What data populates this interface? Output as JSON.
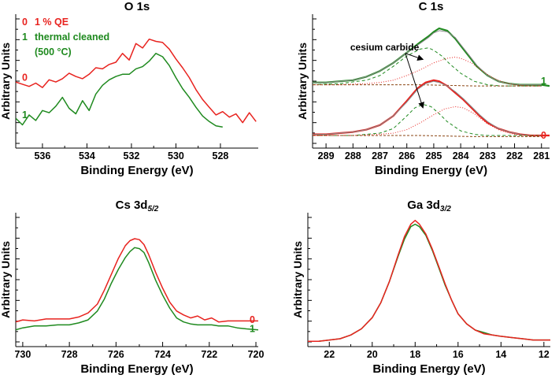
{
  "colors": {
    "red": "#e8231f",
    "green": "#1f8a1f",
    "axis": "#000000",
    "grid": "#666666"
  },
  "chart_data": [
    {
      "id": "o1s",
      "type": "line",
      "title": "O 1s",
      "title_sub": "",
      "xlabel": "Binding Energy (eV)",
      "ylabel": "Arbitrary Units",
      "xlim": [
        537.2,
        526.3
      ],
      "ylim": [
        0,
        1
      ],
      "xticks": [
        536,
        534,
        532,
        530,
        528
      ],
      "legend": [
        {
          "key": "0",
          "text": "1 % QE",
          "color": "red"
        },
        {
          "key": "1",
          "text": "thermal cleaned",
          "color": "green"
        },
        {
          "key": "",
          "text": "(500 °C)",
          "color": "green"
        }
      ],
      "series_labels": [
        {
          "text": "0",
          "color": "red",
          "side": "left",
          "y": 0.52
        },
        {
          "text": "1",
          "color": "green",
          "side": "left",
          "y": 0.18
        }
      ],
      "annotations": [],
      "series": [
        {
          "name": "1 % QE",
          "color": "red",
          "x": [
            537.2,
            536.9,
            536.6,
            536.3,
            536.0,
            535.7,
            535.4,
            535.1,
            534.8,
            534.5,
            534.2,
            533.9,
            533.6,
            533.3,
            533.0,
            532.7,
            532.4,
            532.1,
            531.8,
            531.5,
            531.2,
            530.9,
            530.6,
            530.3,
            530.0,
            529.7,
            529.4,
            529.1,
            528.8,
            528.5,
            528.2,
            527.9,
            527.6,
            527.3,
            527.0,
            526.7,
            526.4
          ],
          "y": [
            0.48,
            0.46,
            0.44,
            0.47,
            0.43,
            0.5,
            0.48,
            0.51,
            0.56,
            0.53,
            0.51,
            0.55,
            0.61,
            0.6,
            0.64,
            0.66,
            0.74,
            0.68,
            0.83,
            0.79,
            0.87,
            0.85,
            0.84,
            0.78,
            0.69,
            0.61,
            0.52,
            0.41,
            0.32,
            0.25,
            0.18,
            0.21,
            0.16,
            0.19,
            0.11,
            0.2,
            0.12
          ]
        },
        {
          "name": "thermal cleaned",
          "color": "green",
          "x": [
            537.2,
            536.9,
            536.6,
            536.3,
            536.0,
            535.7,
            535.4,
            535.1,
            534.8,
            534.5,
            534.2,
            533.9,
            533.6,
            533.3,
            533.0,
            532.7,
            532.4,
            532.1,
            531.8,
            531.5,
            531.2,
            530.9,
            530.6,
            530.3,
            530.0,
            529.7,
            529.4,
            529.1,
            528.8,
            528.5,
            528.2,
            527.9
          ],
          "y": [
            0.15,
            0.09,
            0.18,
            0.13,
            0.22,
            0.2,
            0.26,
            0.34,
            0.24,
            0.19,
            0.31,
            0.22,
            0.37,
            0.45,
            0.5,
            0.53,
            0.55,
            0.55,
            0.6,
            0.62,
            0.67,
            0.74,
            0.71,
            0.63,
            0.52,
            0.42,
            0.34,
            0.25,
            0.17,
            0.12,
            0.08,
            0.07
          ]
        }
      ]
    },
    {
      "id": "c1s",
      "type": "line",
      "title": "C 1s",
      "title_sub": "",
      "xlabel": "Binding Energy (eV)",
      "ylabel": "Arbitrary Units",
      "xlim": [
        289.5,
        280.7
      ],
      "ylim": [
        0,
        1
      ],
      "xticks": [
        289,
        288,
        287,
        286,
        285,
        284,
        283,
        282,
        281
      ],
      "legend": [],
      "series_labels": [
        {
          "text": "1",
          "color": "green",
          "side": "right",
          "y": 0.51
        },
        {
          "text": "0",
          "color": "red",
          "side": "right",
          "y": 0.04
        }
      ],
      "annotations": [
        {
          "text": "cesium carbide",
          "x": 288.1,
          "y": 0.78,
          "arrows": [
            [
              285.4,
              0.7
            ],
            [
              285.4,
              0.28
            ]
          ]
        }
      ],
      "series": [
        {
          "name": "thermal cleaned",
          "color": "green",
          "width": 2.2,
          "x": [
            289.5,
            289.0,
            288.5,
            288.0,
            287.5,
            287.0,
            286.5,
            286.0,
            285.5,
            285.2,
            285.0,
            284.8,
            284.5,
            284.2,
            284.0,
            283.7,
            283.4,
            283.0,
            282.6,
            282.2,
            281.8,
            281.4,
            281.0,
            280.7
          ],
          "y": [
            0.5,
            0.5,
            0.51,
            0.52,
            0.55,
            0.6,
            0.67,
            0.76,
            0.85,
            0.9,
            0.94,
            0.97,
            0.95,
            0.88,
            0.82,
            0.73,
            0.64,
            0.56,
            0.51,
            0.49,
            0.48,
            0.48,
            0.48,
            0.47
          ]
        },
        {
          "name": "fit envelope (1)",
          "color": "grey",
          "width": 1,
          "x": [
            289.5,
            289.0,
            288.5,
            288.0,
            287.5,
            287.0,
            286.5,
            286.0,
            285.5,
            285.2,
            285.0,
            284.8,
            284.5,
            284.2,
            284.0,
            283.7,
            283.4,
            283.0,
            282.6,
            282.2,
            281.8,
            281.4,
            281.0
          ],
          "y": [
            0.5,
            0.5,
            0.51,
            0.52,
            0.55,
            0.6,
            0.67,
            0.76,
            0.84,
            0.89,
            0.93,
            0.95,
            0.94,
            0.89,
            0.83,
            0.74,
            0.65,
            0.56,
            0.51,
            0.49,
            0.48,
            0.48,
            0.48
          ]
        },
        {
          "name": "carbide component (1)",
          "color": "green",
          "dash": "4,3",
          "width": 1,
          "x": [
            289.5,
            288.5,
            287.5,
            287.0,
            286.5,
            286.0,
            285.5,
            285.2,
            285.0,
            284.7,
            284.4,
            284.0,
            283.5,
            283.0,
            282.5,
            282.0,
            281.0
          ],
          "y": [
            0.48,
            0.49,
            0.52,
            0.56,
            0.64,
            0.73,
            0.79,
            0.8,
            0.78,
            0.73,
            0.66,
            0.58,
            0.51,
            0.48,
            0.47,
            0.47,
            0.47
          ]
        },
        {
          "name": "graphitic component (1)",
          "color": "red",
          "dash": "1,2",
          "width": 1,
          "x": [
            289.5,
            288.5,
            287.5,
            287.0,
            286.5,
            286.0,
            285.5,
            285.0,
            284.5,
            284.2,
            284.0,
            283.6,
            283.2,
            282.8,
            282.4,
            282.0,
            281.5,
            281.0
          ],
          "y": [
            0.48,
            0.48,
            0.49,
            0.5,
            0.52,
            0.56,
            0.61,
            0.67,
            0.71,
            0.72,
            0.71,
            0.67,
            0.6,
            0.54,
            0.5,
            0.48,
            0.47,
            0.47
          ]
        },
        {
          "name": "background (1)",
          "color": "brown",
          "dash": "3,2",
          "width": 1,
          "x": [
            289.5,
            287.5,
            285.5,
            283.5,
            281.5,
            281.0
          ],
          "y": [
            0.48,
            0.48,
            0.48,
            0.47,
            0.47,
            0.47
          ]
        },
        {
          "name": "1 % QE",
          "color": "red",
          "width": 2.2,
          "x": [
            289.5,
            289.0,
            288.5,
            288.0,
            287.5,
            287.0,
            286.5,
            286.0,
            285.6,
            285.3,
            285.0,
            284.8,
            284.5,
            284.2,
            283.9,
            283.6,
            283.3,
            283.0,
            282.6,
            282.2,
            281.8,
            281.4,
            281.0,
            280.7
          ],
          "y": [
            0.05,
            0.05,
            0.06,
            0.07,
            0.09,
            0.13,
            0.21,
            0.34,
            0.45,
            0.5,
            0.52,
            0.51,
            0.47,
            0.41,
            0.35,
            0.28,
            0.21,
            0.15,
            0.1,
            0.07,
            0.05,
            0.04,
            0.04,
            0.04
          ]
        },
        {
          "name": "fit envelope (0)",
          "color": "grey",
          "width": 1,
          "x": [
            289.5,
            289.0,
            288.5,
            288.0,
            287.5,
            287.0,
            286.5,
            286.0,
            285.6,
            285.3,
            285.0,
            284.8,
            284.5,
            284.2,
            283.9,
            283.6,
            283.3,
            283.0,
            282.6,
            282.2,
            281.8,
            281.4,
            281.0
          ],
          "y": [
            0.05,
            0.05,
            0.06,
            0.07,
            0.09,
            0.13,
            0.21,
            0.33,
            0.44,
            0.49,
            0.51,
            0.5,
            0.47,
            0.42,
            0.36,
            0.29,
            0.22,
            0.16,
            0.1,
            0.07,
            0.05,
            0.04,
            0.04
          ]
        },
        {
          "name": "carbide component (0)",
          "color": "green",
          "dash": "4,3",
          "width": 1,
          "x": [
            289.5,
            288.0,
            287.0,
            286.5,
            286.0,
            285.7,
            285.4,
            285.1,
            284.8,
            284.5,
            284.0,
            283.5,
            283.0,
            282.0,
            281.0
          ],
          "y": [
            0.04,
            0.04,
            0.06,
            0.1,
            0.21,
            0.28,
            0.31,
            0.29,
            0.23,
            0.16,
            0.08,
            0.05,
            0.04,
            0.04,
            0.04
          ]
        },
        {
          "name": "graphitic component (0)",
          "color": "red",
          "dash": "1,2",
          "width": 1,
          "x": [
            289.5,
            288.0,
            287.0,
            286.5,
            286.0,
            285.5,
            285.0,
            284.6,
            284.2,
            283.9,
            283.5,
            283.0,
            282.5,
            282.0,
            281.5,
            281.0
          ],
          "y": [
            0.04,
            0.04,
            0.05,
            0.06,
            0.09,
            0.15,
            0.22,
            0.27,
            0.29,
            0.28,
            0.23,
            0.14,
            0.08,
            0.05,
            0.04,
            0.04
          ]
        },
        {
          "name": "background (0)",
          "color": "brown",
          "dash": "3,2",
          "width": 1,
          "x": [
            289.5,
            287.5,
            285.5,
            283.5,
            281.5,
            281.0
          ],
          "y": [
            0.04,
            0.04,
            0.04,
            0.03,
            0.03,
            0.03
          ]
        }
      ]
    },
    {
      "id": "cs3d",
      "type": "line",
      "title": "Cs 3d",
      "title_sub": "5/2",
      "xlabel": "Binding Energy (eV)",
      "ylabel": "Arbitrary Units",
      "xlim": [
        730.3,
        719.9
      ],
      "ylim": [
        0,
        1
      ],
      "xticks": [
        730,
        728,
        726,
        724,
        722,
        720
      ],
      "legend": [],
      "series_labels": [
        {
          "text": "0",
          "color": "red",
          "side": "right",
          "y": 0.08
        },
        {
          "text": "1",
          "color": "green",
          "side": "right",
          "y": -0.01
        }
      ],
      "annotations": [],
      "series": [
        {
          "name": "1 % QE",
          "color": "red",
          "x": [
            730.3,
            730.0,
            729.5,
            729.0,
            728.5,
            728.0,
            727.6,
            727.2,
            726.8,
            726.5,
            726.2,
            725.9,
            725.6,
            725.4,
            725.2,
            725.0,
            724.8,
            724.6,
            724.3,
            724.0,
            723.7,
            723.4,
            723.1,
            722.8,
            722.5,
            722.2,
            721.9,
            721.6,
            721.2,
            720.8,
            720.4,
            719.9
          ],
          "y": [
            0.06,
            0.08,
            0.07,
            0.09,
            0.09,
            0.09,
            0.11,
            0.15,
            0.24,
            0.38,
            0.54,
            0.7,
            0.83,
            0.88,
            0.9,
            0.89,
            0.84,
            0.74,
            0.56,
            0.4,
            0.26,
            0.17,
            0.13,
            0.1,
            0.12,
            0.08,
            0.1,
            0.06,
            0.07,
            0.07,
            0.07,
            0.07
          ]
        },
        {
          "name": "thermal cleaned",
          "color": "green",
          "x": [
            730.3,
            730.0,
            729.5,
            729.0,
            728.5,
            728.0,
            727.6,
            727.2,
            726.8,
            726.5,
            726.2,
            725.9,
            725.6,
            725.4,
            725.2,
            725.0,
            724.8,
            724.6,
            724.3,
            724.0,
            723.7,
            723.4,
            723.1,
            722.8,
            722.5,
            722.2,
            721.9,
            721.6,
            721.2,
            720.8,
            720.4,
            719.9
          ],
          "y": [
            -0.02,
            0.0,
            0.02,
            0.02,
            0.03,
            0.03,
            0.05,
            0.08,
            0.17,
            0.29,
            0.45,
            0.59,
            0.71,
            0.77,
            0.81,
            0.8,
            0.76,
            0.66,
            0.48,
            0.33,
            0.2,
            0.1,
            0.06,
            0.04,
            0.03,
            0.03,
            0.03,
            0.02,
            0.02,
            0.0,
            -0.01,
            -0.02
          ]
        }
      ]
    },
    {
      "id": "ga3d",
      "type": "line",
      "title": "Ga 3d",
      "title_sub": "3/2",
      "xlabel": "Binding Energy (eV)",
      "ylabel": "Arbitrary Units",
      "xlim": [
        23.0,
        11.7
      ],
      "ylim": [
        0,
        1
      ],
      "xticks": [
        22,
        20,
        18,
        16,
        14,
        12
      ],
      "legend": [],
      "series_labels": [],
      "annotations": [],
      "series": [
        {
          "name": "thermal cleaned",
          "color": "green",
          "x": [
            23.0,
            22.5,
            22.0,
            21.5,
            21.0,
            20.5,
            20.0,
            19.6,
            19.2,
            18.8,
            18.5,
            18.2,
            18.0,
            17.8,
            17.5,
            17.2,
            16.9,
            16.6,
            16.3,
            16.0,
            15.6,
            15.2,
            14.8,
            14.4,
            14.0,
            13.5,
            13.0,
            12.5,
            12.0,
            11.7
          ],
          "y": [
            0.0,
            0.0,
            0.01,
            0.02,
            0.05,
            0.1,
            0.19,
            0.31,
            0.48,
            0.68,
            0.82,
            0.92,
            0.94,
            0.92,
            0.85,
            0.73,
            0.59,
            0.45,
            0.33,
            0.22,
            0.14,
            0.09,
            0.07,
            0.05,
            0.04,
            0.03,
            0.02,
            0.01,
            0.01,
            0.01
          ]
        },
        {
          "name": "1 % QE",
          "color": "red",
          "x": [
            23.0,
            22.5,
            22.0,
            21.5,
            21.0,
            20.5,
            20.0,
            19.6,
            19.2,
            18.8,
            18.5,
            18.2,
            18.0,
            17.8,
            17.5,
            17.2,
            16.9,
            16.6,
            16.3,
            16.0,
            15.6,
            15.2,
            14.8,
            14.4,
            14.0,
            13.5,
            13.0,
            12.5,
            12.0,
            11.7
          ],
          "y": [
            0.0,
            0.0,
            0.01,
            0.02,
            0.05,
            0.1,
            0.19,
            0.31,
            0.48,
            0.69,
            0.84,
            0.94,
            0.97,
            0.94,
            0.86,
            0.74,
            0.6,
            0.46,
            0.33,
            0.22,
            0.14,
            0.09,
            0.06,
            0.05,
            0.04,
            0.03,
            0.02,
            0.01,
            0.01,
            0.01
          ]
        }
      ]
    }
  ]
}
